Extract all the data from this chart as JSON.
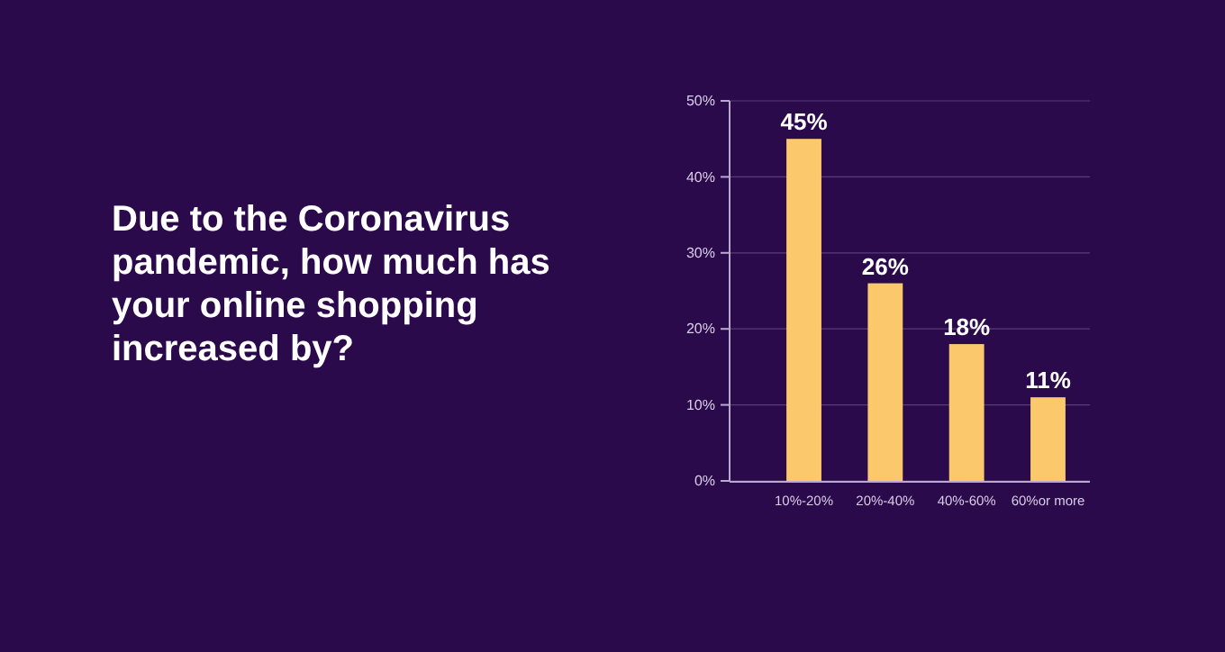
{
  "chart_data": {
    "type": "bar",
    "title": "Due to the Coronavirus pandemic, how much has your online shopping increased by?",
    "categories": [
      "10%-20%",
      "20%-40%",
      "40%-60%",
      "60%or more"
    ],
    "values": [
      45,
      26,
      18,
      11
    ],
    "value_labels": [
      "45%",
      "26%",
      "18%",
      "11%"
    ],
    "color": "#fbc96b",
    "ylim": [
      0,
      50
    ],
    "yticks": [
      {
        "value": 0,
        "label": "0%"
      },
      {
        "value": 10,
        "label": "10%"
      },
      {
        "value": 20,
        "label": "20%"
      },
      {
        "value": 30,
        "label": "30%"
      },
      {
        "value": 40,
        "label": "40%"
      },
      {
        "value": 50,
        "label": "50%"
      }
    ],
    "grid": "y"
  }
}
